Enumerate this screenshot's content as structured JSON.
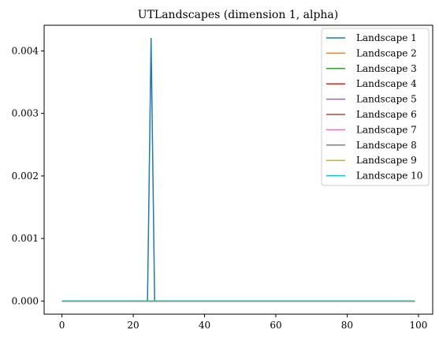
{
  "chart_data": {
    "type": "line",
    "title": "UTLandscapes (dimension 1, alpha)",
    "xlabel": "",
    "ylabel": "",
    "xlim": [
      -5,
      104
    ],
    "ylim": [
      -0.00021,
      0.00441
    ],
    "xticks": [
      0,
      20,
      40,
      60,
      80,
      100
    ],
    "xtick_labels": [
      "0",
      "20",
      "40",
      "60",
      "80",
      "100"
    ],
    "yticks": [
      0.0,
      0.001,
      0.002,
      0.003,
      0.004
    ],
    "ytick_labels": [
      "0.000",
      "0.001",
      "0.002",
      "0.003",
      "0.004"
    ],
    "grid": false,
    "legend_position": "top-right",
    "series": [
      {
        "name": "Landscape 1",
        "color": "#1f77b4",
        "points": [
          [
            0,
            0
          ],
          [
            24,
            0
          ],
          [
            25,
            0.0042
          ],
          [
            26,
            0
          ],
          [
            99,
            0
          ]
        ]
      },
      {
        "name": "Landscape 2",
        "color": "#ff7f0e",
        "points": [
          [
            0,
            0
          ],
          [
            99,
            0
          ]
        ]
      },
      {
        "name": "Landscape 3",
        "color": "#2ca02c",
        "points": [
          [
            0,
            0
          ],
          [
            99,
            0
          ]
        ]
      },
      {
        "name": "Landscape 4",
        "color": "#d62728",
        "points": [
          [
            0,
            0
          ],
          [
            99,
            0
          ]
        ]
      },
      {
        "name": "Landscape 5",
        "color": "#9467bd",
        "points": [
          [
            0,
            0
          ],
          [
            99,
            0
          ]
        ]
      },
      {
        "name": "Landscape 6",
        "color": "#8c564b",
        "points": [
          [
            0,
            0
          ],
          [
            99,
            0
          ]
        ]
      },
      {
        "name": "Landscape 7",
        "color": "#e377c2",
        "points": [
          [
            0,
            0
          ],
          [
            99,
            0
          ]
        ]
      },
      {
        "name": "Landscape 8",
        "color": "#7f7f7f",
        "points": [
          [
            0,
            0
          ],
          [
            99,
            0
          ]
        ]
      },
      {
        "name": "Landscape 9",
        "color": "#bcbd22",
        "points": [
          [
            0,
            0
          ],
          [
            99,
            0
          ]
        ]
      },
      {
        "name": "Landscape 10",
        "color": "#17becf",
        "points": [
          [
            0,
            0
          ],
          [
            99,
            0
          ]
        ]
      }
    ]
  }
}
